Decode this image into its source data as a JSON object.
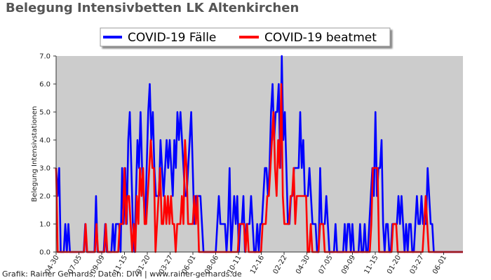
{
  "title": "Belegung Intensivbetten LK Altenkirchen",
  "credit": "Grafik: Rainer Gerhards, Daten: DIVI | www.rainer-gerhards.de",
  "chart_data": {
    "type": "line",
    "title": "Belegung Intensivbetten LK Altenkirchen",
    "ylabel": "Belegung Intensivstationen",
    "xlabel": "",
    "ylim": [
      0,
      7
    ],
    "yticks": [
      "0.0",
      "1.0",
      "2.0",
      "3.0",
      "4.0",
      "5.0",
      "6.0",
      "7.0"
    ],
    "xticks": [
      "04-30",
      "07-05",
      "09-09",
      "11-15",
      "01-20",
      "03-27",
      "06-01",
      "08-06",
      "10-11",
      "12-16",
      "02-22",
      "04-30",
      "07-05",
      "09-09",
      "11-15",
      "01-20",
      "03-27",
      "06-01"
    ],
    "grid": false,
    "legend_position": "top-center",
    "plot_background": "#cccccc",
    "series": [
      {
        "name": "COVID-19 Fälle",
        "color": "#0000ff",
        "values": [
          3,
          2,
          3,
          0,
          0,
          0,
          1,
          0,
          1,
          0,
          0,
          0,
          0,
          0,
          0,
          0,
          0,
          0,
          0,
          1,
          0,
          0,
          0,
          0,
          0,
          0,
          2,
          0,
          0,
          0,
          0,
          0,
          1,
          0,
          0,
          0,
          0,
          1,
          0,
          1,
          1,
          1,
          0,
          3,
          1,
          3,
          1,
          4,
          5,
          3,
          1,
          0,
          2,
          4,
          3,
          5,
          3,
          2,
          1,
          3,
          5,
          6,
          4,
          5,
          3,
          2,
          2,
          2,
          4,
          3,
          2,
          3,
          4,
          3,
          4,
          3,
          2,
          4,
          3,
          5,
          4,
          5,
          4,
          3,
          2,
          2,
          3,
          4,
          5,
          3,
          1,
          2,
          2,
          2,
          2,
          1,
          0,
          0,
          0,
          0,
          0,
          0,
          0,
          0,
          0,
          1,
          2,
          1,
          1,
          1,
          1,
          0,
          1,
          3,
          0,
          1,
          2,
          1,
          2,
          0,
          1,
          1,
          2,
          0,
          1,
          1,
          1,
          2,
          1,
          0,
          0,
          1,
          0,
          1,
          1,
          2,
          3,
          3,
          2,
          3,
          5,
          6,
          4,
          5,
          5,
          6,
          3,
          7,
          4,
          5,
          3,
          1,
          1,
          2,
          2,
          3,
          3,
          3,
          3,
          5,
          3,
          4,
          2,
          2,
          2,
          3,
          2,
          1,
          1,
          1,
          0,
          0,
          3,
          1,
          1,
          1,
          2,
          1,
          0,
          0,
          0,
          0,
          1,
          0,
          0,
          0,
          0,
          0,
          1,
          0,
          1,
          1,
          0,
          1,
          0,
          0,
          0,
          0,
          1,
          0,
          0,
          1,
          0,
          0,
          1,
          2,
          3,
          2,
          5,
          2,
          3,
          3,
          4,
          1,
          0,
          1,
          1,
          0,
          0,
          1,
          1,
          1,
          1,
          2,
          1,
          2,
          1,
          0,
          1,
          0,
          1,
          1,
          0,
          0,
          1,
          2,
          1,
          1,
          2,
          1,
          1,
          1,
          3,
          2,
          1,
          1,
          0,
          0,
          0,
          0,
          0,
          0,
          0,
          0,
          0,
          0,
          0,
          0,
          0,
          0,
          0,
          0,
          0,
          0,
          0,
          0
        ]
      },
      {
        "name": "COVID-19 beatmet",
        "color": "#ff0000",
        "values": [
          3,
          0,
          0,
          0,
          0,
          0,
          0,
          0,
          0,
          0,
          0,
          0,
          0,
          0,
          0,
          0,
          0,
          0,
          0,
          1,
          0,
          0,
          0,
          0,
          0,
          0,
          1,
          0,
          0,
          0,
          0,
          0,
          1,
          0,
          0,
          0,
          0,
          0,
          0,
          0,
          0,
          1,
          1,
          1,
          3,
          1,
          2,
          2,
          1,
          0,
          1,
          0,
          2,
          1,
          3,
          2,
          3,
          1,
          1,
          2,
          3,
          4,
          3,
          3,
          0,
          1,
          2,
          3,
          1,
          1,
          2,
          1,
          2,
          1,
          2,
          1,
          1,
          0,
          1,
          1,
          1,
          2,
          1,
          4,
          3,
          1,
          1,
          1,
          1,
          2,
          1,
          2,
          0,
          0,
          0,
          0,
          0,
          0,
          0,
          0,
          0,
          0,
          0,
          0,
          0,
          0,
          0,
          0,
          0,
          0,
          0,
          0,
          0,
          0,
          0,
          0,
          0,
          0,
          1,
          1,
          1,
          1,
          0,
          1,
          0,
          0,
          0,
          0,
          0,
          0,
          0,
          0,
          0,
          1,
          1,
          1,
          2,
          2,
          3,
          4,
          5,
          3,
          2,
          4,
          3,
          6,
          2,
          1,
          1,
          1,
          1,
          2,
          2,
          3,
          1,
          2,
          2,
          2,
          2,
          2,
          2,
          2,
          0,
          0,
          1,
          0,
          0,
          0,
          0,
          0,
          1,
          1,
          1,
          0,
          0,
          0,
          0,
          0,
          0,
          0,
          0,
          0,
          0,
          0,
          0,
          0,
          0,
          0,
          0,
          0,
          0,
          0,
          0,
          0,
          0,
          0,
          0,
          0,
          0,
          0,
          0,
          0,
          0,
          1,
          3,
          3,
          3,
          3,
          0,
          0,
          0,
          0,
          0,
          0,
          0,
          0,
          0,
          1,
          1,
          1,
          0,
          0,
          0,
          0,
          0,
          0,
          0,
          0,
          0,
          0,
          0,
          0,
          0,
          0,
          0,
          0,
          0,
          1,
          2,
          1,
          0,
          0,
          0,
          0,
          0,
          0,
          0,
          0,
          0,
          0,
          0,
          0,
          0,
          0,
          0,
          0,
          0,
          0,
          0,
          0,
          0,
          0,
          0
        ]
      }
    ]
  }
}
